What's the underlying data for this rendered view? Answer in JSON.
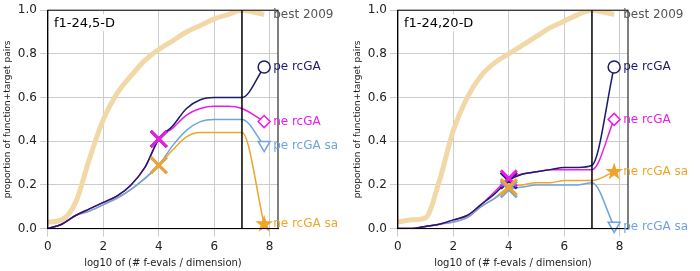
{
  "chart_data": [
    {
      "type": "line",
      "title": "f1-24,5-D",
      "x_label": "log10 of (# f-evals / dimension)",
      "y_label": "proportion of function+target pairs",
      "x": [
        0,
        0.5,
        1,
        1.5,
        2,
        2.5,
        3,
        3.5,
        4,
        4.5,
        5,
        5.5,
        6,
        6.5,
        7,
        7.8
      ],
      "xlim": [
        0,
        8.3
      ],
      "xticks": [
        0,
        2,
        4,
        6,
        8
      ],
      "ylim": [
        0,
        1
      ],
      "yticks": [
        {
          "value": 0,
          "label": "0.0"
        },
        0.2,
        0.4,
        0.6,
        0.8,
        {
          "value": 1,
          "label": "1.0"
        }
      ],
      "grid": true,
      "max_evals": 7,
      "cross_at": 4,
      "series": [
        {
          "name": "best 2009",
          "color": "#f2d8a7",
          "values": [
            0.03,
            0.04,
            0.12,
            0.32,
            0.5,
            0.62,
            0.7,
            0.77,
            0.82,
            0.86,
            0.9,
            0.93,
            0.96,
            0.98,
            1.0,
            0.98
          ]
        },
        {
          "name": "pe rcGA",
          "color": "#1c1c6e",
          "marker": "circle",
          "values": [
            0,
            0.02,
            0.06,
            0.09,
            0.12,
            0.15,
            0.2,
            0.28,
            0.41,
            0.47,
            0.55,
            0.59,
            0.6,
            0.6,
            0.6,
            0.74
          ]
        },
        {
          "name": "ne rcGA",
          "color": "#e81ee8",
          "marker": "diamond",
          "values": [
            0,
            0.02,
            0.06,
            0.09,
            0.12,
            0.15,
            0.2,
            0.28,
            0.41,
            0.46,
            0.52,
            0.55,
            0.56,
            0.56,
            0.55,
            0.49
          ]
        },
        {
          "name": "pe rcGA sa",
          "color": "#6fa3e3",
          "marker": "triangle_down",
          "values": [
            0,
            0.02,
            0.06,
            0.08,
            0.11,
            0.14,
            0.18,
            0.23,
            0.29,
            0.38,
            0.45,
            0.49,
            0.5,
            0.5,
            0.5,
            0.38
          ]
        },
        {
          "name": "ne rcGA sa",
          "color": "#f0a52a",
          "marker": "star",
          "values": [
            0,
            0.02,
            0.06,
            0.08,
            0.11,
            0.14,
            0.18,
            0.23,
            0.29,
            0.36,
            0.42,
            0.44,
            0.44,
            0.44,
            0.44,
            0.02
          ]
        }
      ]
    },
    {
      "type": "line",
      "title": "f1-24,20-D",
      "x_label": "log10 of (# f-evals / dimension)",
      "y_label": "proportion of function+target pairs",
      "x": [
        0,
        0.5,
        1,
        1.5,
        2,
        2.5,
        3,
        3.5,
        4,
        4.5,
        5,
        5.5,
        6,
        6.5,
        7,
        7.8
      ],
      "xlim": [
        0,
        8.3
      ],
      "xticks": [
        0,
        2,
        4,
        6,
        8
      ],
      "ylim": [
        0,
        1
      ],
      "yticks": [
        {
          "value": 0,
          "label": "0.0"
        },
        0.2,
        0.4,
        0.6,
        0.8,
        {
          "value": 1,
          "label": "1.0"
        }
      ],
      "grid": true,
      "max_evals": 7,
      "cross_at": 4,
      "series": [
        {
          "name": "best 2009",
          "color": "#f2d8a7",
          "values": [
            0.03,
            0.04,
            0.05,
            0.22,
            0.45,
            0.6,
            0.7,
            0.76,
            0.8,
            0.84,
            0.88,
            0.92,
            0.95,
            0.98,
            1.0,
            0.98
          ]
        },
        {
          "name": "pe rcGA",
          "color": "#1c1c6e",
          "marker": "circle",
          "values": [
            0,
            0,
            0.01,
            0.02,
            0.04,
            0.06,
            0.11,
            0.16,
            0.22,
            0.25,
            0.26,
            0.27,
            0.28,
            0.28,
            0.29,
            0.74
          ]
        },
        {
          "name": "ne rcGA",
          "color": "#e81ee8",
          "marker": "diamond",
          "values": [
            0,
            0,
            0.01,
            0.02,
            0.04,
            0.06,
            0.11,
            0.17,
            0.23,
            0.25,
            0.26,
            0.27,
            0.27,
            0.27,
            0.27,
            0.5
          ]
        },
        {
          "name": "pe rcGA sa",
          "color": "#6fa3e3",
          "marker": "triangle_down",
          "values": [
            0,
            0,
            0.01,
            0.02,
            0.03,
            0.05,
            0.1,
            0.14,
            0.18,
            0.19,
            0.2,
            0.2,
            0.2,
            0.2,
            0.21,
            0.01
          ]
        },
        {
          "name": "ne rcGA sa",
          "color": "#f0a52a",
          "marker": "star",
          "values": [
            0,
            0,
            0.01,
            0.02,
            0.03,
            0.05,
            0.1,
            0.14,
            0.19,
            0.2,
            0.21,
            0.21,
            0.22,
            0.22,
            0.22,
            0.26
          ]
        }
      ]
    }
  ]
}
